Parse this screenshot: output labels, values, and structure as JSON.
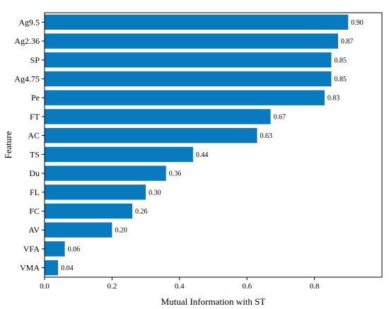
{
  "chart_data": {
    "type": "bar",
    "orientation": "horizontal",
    "title": "",
    "xlabel": "Mutual Information with ST",
    "ylabel": "Feature",
    "categories": [
      "Ag9.5",
      "Ag2.36",
      "SP",
      "Ag4.75",
      "Pe",
      "FT",
      "AC",
      "TS",
      "Du",
      "FL",
      "FC",
      "AV",
      "VFA",
      "VMA"
    ],
    "values": [
      0.9,
      0.87,
      0.85,
      0.85,
      0.83,
      0.67,
      0.63,
      0.44,
      0.36,
      0.3,
      0.26,
      0.2,
      0.06,
      0.04
    ],
    "value_labels": [
      "0.90",
      "0.87",
      "0.85",
      "0.85",
      "0.83",
      "0.67",
      "0.63",
      "0.44",
      "0.36",
      "0.30",
      "0.26",
      "0.20",
      "0.06",
      "0.04"
    ],
    "xlim": [
      0,
      1.0
    ],
    "xticks": [
      0.0,
      0.2,
      0.4,
      0.6,
      0.8
    ],
    "xtick_labels": [
      "0.0",
      "0.2",
      "0.4",
      "0.6",
      "0.8"
    ],
    "grid": false,
    "legend": "none",
    "bar_color": "#0a7abf"
  }
}
